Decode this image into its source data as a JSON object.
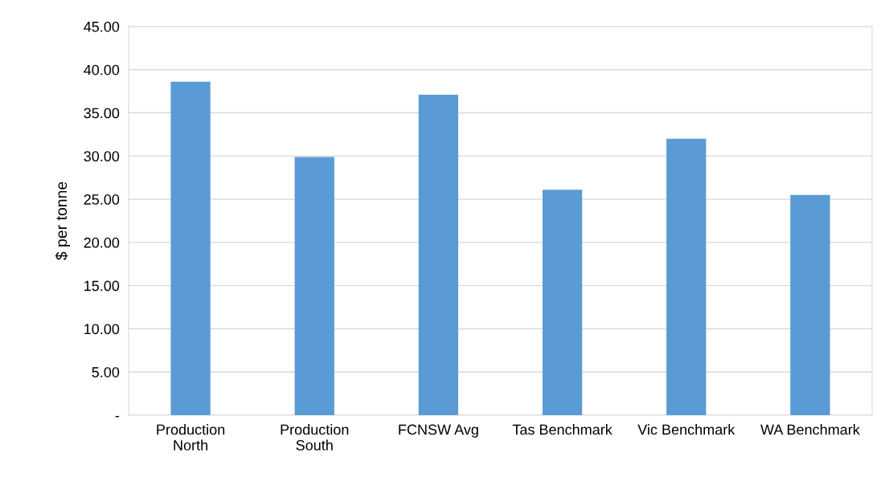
{
  "chart_data": {
    "type": "bar",
    "ylabel": "$ per tonne",
    "categories": [
      "Production\nNorth",
      "Production\nSouth",
      "FCNSW Avg",
      "Tas Benchmark",
      "Vic Benchmark",
      "WA Benchmark"
    ],
    "values": [
      38.6,
      29.9,
      37.1,
      26.1,
      32.0,
      25.5
    ],
    "color": "#5b9bd5",
    "ylim": [
      0,
      45
    ],
    "yticks": [
      {
        "value": 0,
        "label": "-"
      },
      {
        "value": 5,
        "label": "5.00"
      },
      {
        "value": 10,
        "label": "10.00"
      },
      {
        "value": 15,
        "label": "15.00"
      },
      {
        "value": 20,
        "label": "20.00"
      },
      {
        "value": 25,
        "label": "25.00"
      },
      {
        "value": 30,
        "label": "30.00"
      },
      {
        "value": 35,
        "label": "35.00"
      },
      {
        "value": 40,
        "label": "40.00"
      },
      {
        "value": 45,
        "label": "45.00"
      }
    ],
    "grid": "y"
  }
}
